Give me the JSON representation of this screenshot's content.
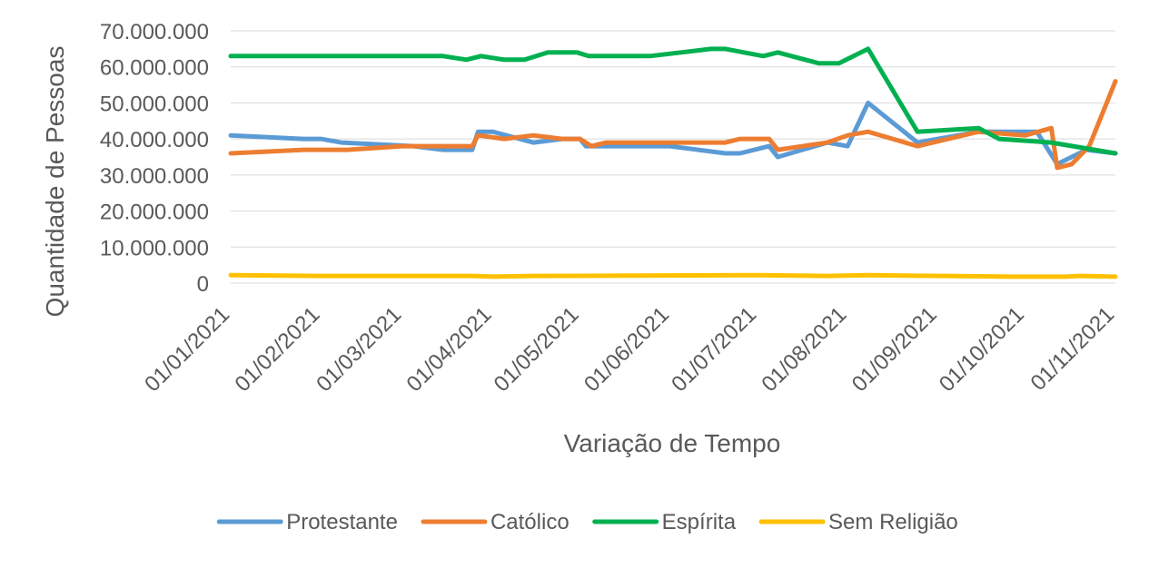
{
  "chart_data": {
    "type": "line",
    "title": "",
    "xlabel": "Variação de Tempo",
    "ylabel": "Quantidade de Pessoas",
    "ylim": [
      0,
      70000000
    ],
    "xlim": [
      "2021-01-01",
      "2021-11-01"
    ],
    "grid": true,
    "legend_position": "bottom",
    "y_ticks": [
      {
        "value": 0,
        "label": "0"
      },
      {
        "value": 10000000,
        "label": "10.000.000"
      },
      {
        "value": 20000000,
        "label": "20.000.000"
      },
      {
        "value": 30000000,
        "label": "30.000.000"
      },
      {
        "value": 40000000,
        "label": "40.000.000"
      },
      {
        "value": 50000000,
        "label": "50.000.000"
      },
      {
        "value": 60000000,
        "label": "60.000.000"
      },
      {
        "value": 70000000,
        "label": "70.000.000"
      }
    ],
    "x_ticks": [
      {
        "date": "2021-01-01",
        "label": "01/01/2021"
      },
      {
        "date": "2021-02-01",
        "label": "01/02/2021"
      },
      {
        "date": "2021-03-01",
        "label": "01/03/2021"
      },
      {
        "date": "2021-04-01",
        "label": "01/04/2021"
      },
      {
        "date": "2021-05-01",
        "label": "01/05/2021"
      },
      {
        "date": "2021-06-01",
        "label": "01/06/2021"
      },
      {
        "date": "2021-07-01",
        "label": "01/07/2021"
      },
      {
        "date": "2021-08-01",
        "label": "01/08/2021"
      },
      {
        "date": "2021-09-01",
        "label": "01/09/2021"
      },
      {
        "date": "2021-10-01",
        "label": "01/10/2021"
      },
      {
        "date": "2021-11-01",
        "label": "01/11/2021"
      }
    ],
    "series": [
      {
        "name": "Protestante",
        "color": "#5b9bd5",
        "points": [
          {
            "x": "2021-01-01",
            "y": 41000000
          },
          {
            "x": "2021-01-26",
            "y": 40000000
          },
          {
            "x": "2021-02-01",
            "y": 40000000
          },
          {
            "x": "2021-02-08",
            "y": 39000000
          },
          {
            "x": "2021-03-05",
            "y": 38000000
          },
          {
            "x": "2021-03-15",
            "y": 37000000
          },
          {
            "x": "2021-03-25",
            "y": 37000000
          },
          {
            "x": "2021-03-27",
            "y": 42000000
          },
          {
            "x": "2021-04-01",
            "y": 42000000
          },
          {
            "x": "2021-04-15",
            "y": 39000000
          },
          {
            "x": "2021-04-25",
            "y": 40000000
          },
          {
            "x": "2021-05-01",
            "y": 40000000
          },
          {
            "x": "2021-05-03",
            "y": 38000000
          },
          {
            "x": "2021-05-20",
            "y": 38000000
          },
          {
            "x": "2021-06-01",
            "y": 38000000
          },
          {
            "x": "2021-06-20",
            "y": 36000000
          },
          {
            "x": "2021-06-25",
            "y": 36000000
          },
          {
            "x": "2021-07-05",
            "y": 38000000
          },
          {
            "x": "2021-07-08",
            "y": 35000000
          },
          {
            "x": "2021-07-25",
            "y": 39000000
          },
          {
            "x": "2021-08-01",
            "y": 38000000
          },
          {
            "x": "2021-08-08",
            "y": 50000000
          },
          {
            "x": "2021-08-25",
            "y": 39000000
          },
          {
            "x": "2021-09-15",
            "y": 42000000
          },
          {
            "x": "2021-09-25",
            "y": 42000000
          },
          {
            "x": "2021-10-05",
            "y": 42000000
          },
          {
            "x": "2021-10-12",
            "y": 33000000
          },
          {
            "x": "2021-10-22",
            "y": 37000000
          },
          {
            "x": "2021-11-01",
            "y": 36000000
          }
        ]
      },
      {
        "name": "Católico",
        "color": "#ed7d31",
        "points": [
          {
            "x": "2021-01-01",
            "y": 36000000
          },
          {
            "x": "2021-01-26",
            "y": 37000000
          },
          {
            "x": "2021-02-10",
            "y": 37000000
          },
          {
            "x": "2021-03-01",
            "y": 38000000
          },
          {
            "x": "2021-03-25",
            "y": 38000000
          },
          {
            "x": "2021-03-27",
            "y": 41000000
          },
          {
            "x": "2021-04-05",
            "y": 40000000
          },
          {
            "x": "2021-04-15",
            "y": 41000000
          },
          {
            "x": "2021-04-25",
            "y": 40000000
          },
          {
            "x": "2021-05-01",
            "y": 40000000
          },
          {
            "x": "2021-05-05",
            "y": 38000000
          },
          {
            "x": "2021-05-10",
            "y": 39000000
          },
          {
            "x": "2021-05-25",
            "y": 39000000
          },
          {
            "x": "2021-06-20",
            "y": 39000000
          },
          {
            "x": "2021-06-25",
            "y": 40000000
          },
          {
            "x": "2021-07-05",
            "y": 40000000
          },
          {
            "x": "2021-07-08",
            "y": 37000000
          },
          {
            "x": "2021-07-25",
            "y": 39000000
          },
          {
            "x": "2021-08-01",
            "y": 41000000
          },
          {
            "x": "2021-08-08",
            "y": 42000000
          },
          {
            "x": "2021-08-25",
            "y": 38000000
          },
          {
            "x": "2021-09-15",
            "y": 42000000
          },
          {
            "x": "2021-10-01",
            "y": 41000000
          },
          {
            "x": "2021-10-10",
            "y": 43000000
          },
          {
            "x": "2021-10-12",
            "y": 32000000
          },
          {
            "x": "2021-10-17",
            "y": 33000000
          },
          {
            "x": "2021-10-23",
            "y": 38000000
          },
          {
            "x": "2021-11-01",
            "y": 56000000
          }
        ]
      },
      {
        "name": "Espírita",
        "color": "#00b050",
        "points": [
          {
            "x": "2021-01-01",
            "y": 63000000
          },
          {
            "x": "2021-03-15",
            "y": 63000000
          },
          {
            "x": "2021-03-23",
            "y": 62000000
          },
          {
            "x": "2021-03-28",
            "y": 63000000
          },
          {
            "x": "2021-04-05",
            "y": 62000000
          },
          {
            "x": "2021-04-12",
            "y": 62000000
          },
          {
            "x": "2021-04-20",
            "y": 64000000
          },
          {
            "x": "2021-04-30",
            "y": 64000000
          },
          {
            "x": "2021-05-04",
            "y": 63000000
          },
          {
            "x": "2021-05-25",
            "y": 63000000
          },
          {
            "x": "2021-06-15",
            "y": 65000000
          },
          {
            "x": "2021-06-20",
            "y": 65000000
          },
          {
            "x": "2021-07-03",
            "y": 63000000
          },
          {
            "x": "2021-07-08",
            "y": 64000000
          },
          {
            "x": "2021-07-22",
            "y": 61000000
          },
          {
            "x": "2021-07-29",
            "y": 61000000
          },
          {
            "x": "2021-08-08",
            "y": 65000000
          },
          {
            "x": "2021-08-25",
            "y": 42000000
          },
          {
            "x": "2021-09-15",
            "y": 43000000
          },
          {
            "x": "2021-09-22",
            "y": 40000000
          },
          {
            "x": "2021-10-10",
            "y": 39000000
          },
          {
            "x": "2021-11-01",
            "y": 36000000
          }
        ]
      },
      {
        "name": "Sem Religião",
        "color": "#ffc000",
        "points": [
          {
            "x": "2021-01-01",
            "y": 2200000
          },
          {
            "x": "2021-02-01",
            "y": 2000000
          },
          {
            "x": "2021-03-25",
            "y": 2000000
          },
          {
            "x": "2021-04-01",
            "y": 1800000
          },
          {
            "x": "2021-04-15",
            "y": 2000000
          },
          {
            "x": "2021-07-01",
            "y": 2200000
          },
          {
            "x": "2021-07-25",
            "y": 2000000
          },
          {
            "x": "2021-08-08",
            "y": 2200000
          },
          {
            "x": "2021-09-25",
            "y": 1800000
          },
          {
            "x": "2021-10-15",
            "y": 1800000
          },
          {
            "x": "2021-10-20",
            "y": 2000000
          },
          {
            "x": "2021-11-01",
            "y": 1800000
          }
        ]
      }
    ]
  }
}
